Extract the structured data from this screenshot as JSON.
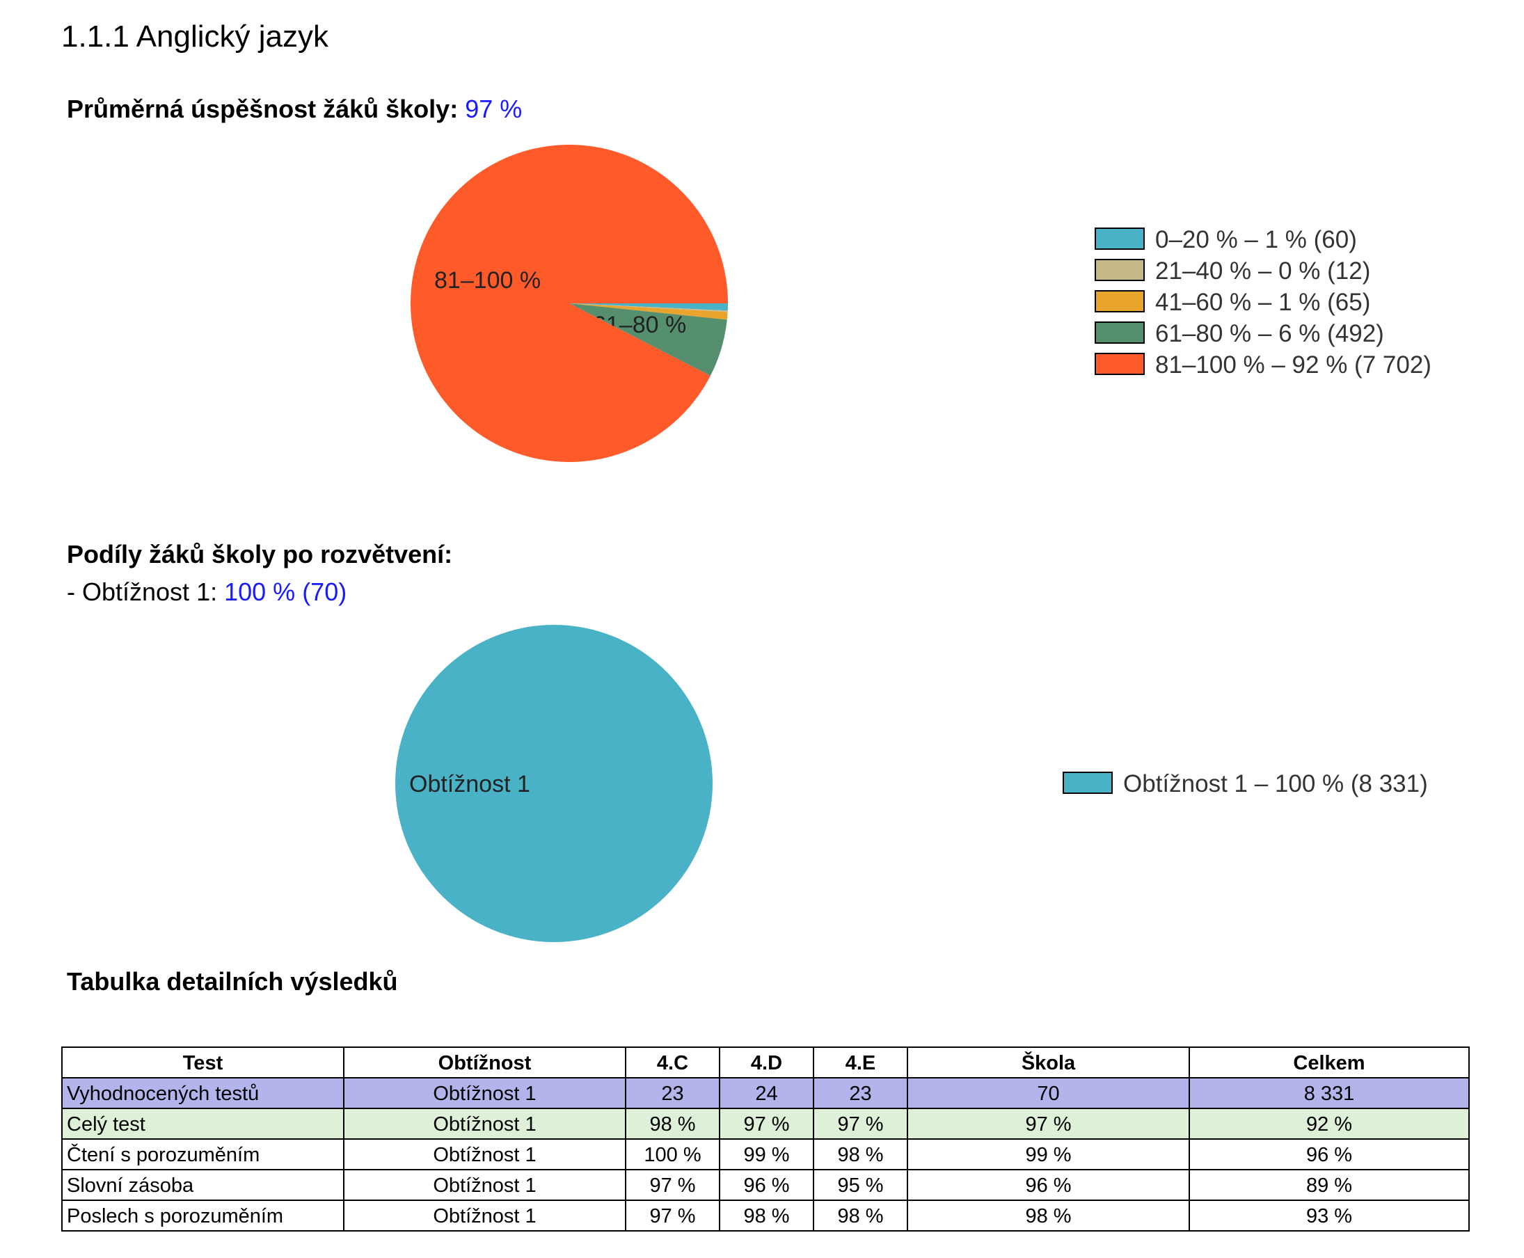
{
  "section_title": "1.1.1 Anglický jazyk",
  "average": {
    "label": "Průměrná úspěšnost žáků školy:",
    "value": "97 %"
  },
  "shares": {
    "heading": "Podíly žáků školy po rozvětvení:",
    "item_label": "- Obtížnost 1:",
    "item_value": "100 % (70)"
  },
  "table_heading": "Tabulka detailních výsledků",
  "chart_data": [
    {
      "type": "pie",
      "slices": [
        {
          "label": "0–20 %",
          "percent": 1,
          "count": 60,
          "color": "#4ab2c6",
          "legend": "0–20 % – 1 % (60)",
          "slice_label": ""
        },
        {
          "label": "21–40 %",
          "percent": 0,
          "count": 12,
          "color": "#c8b98a",
          "legend": "21–40 % – 0 % (12)",
          "slice_label": ""
        },
        {
          "label": "41–60 %",
          "percent": 1,
          "count": 65,
          "color": "#e8a42c",
          "legend": "41–60 % – 1 % (65)",
          "slice_label": ""
        },
        {
          "label": "61–80 %",
          "percent": 6,
          "count": 492,
          "color": "#558f6e",
          "legend": "61–80 % – 6 % (492)",
          "slice_label": "61–80 %"
        },
        {
          "label": "81–100 %",
          "percent": 92,
          "count": 7702,
          "color": "#ff5a2a",
          "legend": "81–100 % – 92 % (7 702)",
          "slice_label": "81–100 %"
        }
      ],
      "legend_position": "right"
    },
    {
      "type": "pie",
      "slices": [
        {
          "label": "Obtížnost 1",
          "percent": 100,
          "count": 8331,
          "color": "#4ab2c6",
          "legend": "Obtížnost 1 – 100 % (8 331)",
          "slice_label": "Obtížnost 1"
        }
      ],
      "legend_position": "right"
    }
  ],
  "table": {
    "headers": [
      "Test",
      "Obtížnost",
      "4.C",
      "4.D",
      "4.E",
      "Škola",
      "Celkem"
    ],
    "rows": [
      {
        "cells": [
          "Vyhodnocených testů",
          "Obtížnost 1",
          "23",
          "24",
          "23",
          "70",
          "8 331"
        ],
        "bg": "#b4b4ec"
      },
      {
        "cells": [
          "Celý test",
          "Obtížnost 1",
          "98 %",
          "97 %",
          "97 %",
          "97 %",
          "92 %"
        ],
        "bg": "#dff0d8"
      },
      {
        "cells": [
          "Čtení s porozuměním",
          "Obtížnost 1",
          "100 %",
          "99 %",
          "98 %",
          "99 %",
          "96 %"
        ],
        "bg": "#ffffff"
      },
      {
        "cells": [
          "Slovní zásoba",
          "Obtížnost 1",
          "97 %",
          "96 %",
          "95 %",
          "96 %",
          "89 %"
        ],
        "bg": "#ffffff"
      },
      {
        "cells": [
          "Poslech s porozuměním",
          "Obtížnost 1",
          "97 %",
          "98 %",
          "98 %",
          "98 %",
          "93 %"
        ],
        "bg": "#ffffff"
      }
    ]
  }
}
